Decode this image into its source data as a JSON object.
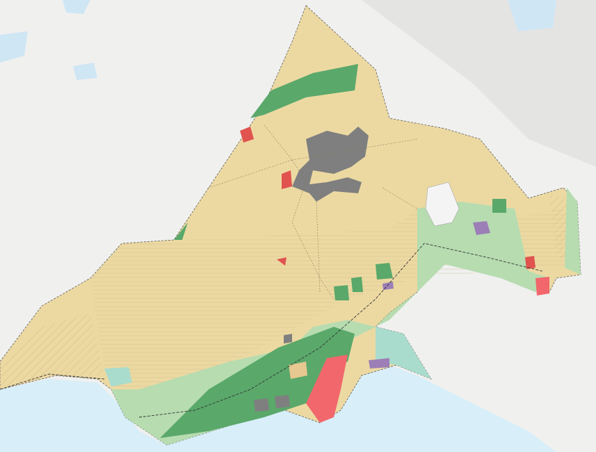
{
  "map": {
    "colors": {
      "basemap": "#f0f0ef",
      "sea": "#d8eef9",
      "lake": "#cfe6f4",
      "open_land": "#ecd9a2",
      "forest": "#5aa86a",
      "agriculture": "#b6dcb0",
      "industry": "#7f7f7f",
      "commercial": "#f1676c",
      "residential_pink": "#f3b5b5",
      "lagoon": "#a9dccc",
      "community": "#9c7fb6",
      "boundary": "#5a5a5a"
    }
  }
}
